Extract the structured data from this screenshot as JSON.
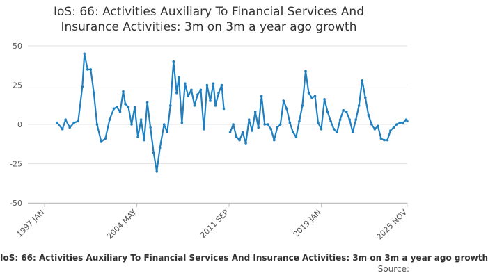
{
  "chart_data": {
    "type": "line",
    "title_line1": "IoS: 66: Activities Auxiliary To Financial Services And",
    "title_line2": "Insurance Activities: 3m on 3m a year ago growth",
    "x_tick_labels": [
      "1997 JAN",
      "2004 MAY",
      "2011 SEP",
      "2019 JAN",
      "2025 NOV"
    ],
    "y_ticks": [
      50,
      25,
      0,
      -25,
      -50
    ],
    "ylim": [
      -50,
      50
    ],
    "grid": true,
    "legend_position": "bottom",
    "color": "#1f7fbf",
    "series": [
      {
        "name": "IoS: 66: Activities Auxiliary To Financial Services And Insurance Activities: 3m on 3m a year ago growth",
        "segments": [
          {
            "x": [
              "1998-01",
              "1998-06",
              "1998-09",
              "1999-01",
              "1999-05",
              "1999-09",
              "2000-01",
              "2000-03",
              "2000-06",
              "2000-09",
              "2000-12",
              "2001-03",
              "2001-07",
              "2001-11",
              "2002-03",
              "2002-07",
              "2002-10",
              "2003-01",
              "2003-04",
              "2003-06",
              "2003-09",
              "2003-12",
              "2004-03",
              "2004-06",
              "2004-09",
              "2004-12",
              "2005-03",
              "2005-06",
              "2005-09",
              "2005-12",
              "2006-03",
              "2006-07",
              "2006-10",
              "2007-01",
              "2007-04",
              "2007-07",
              "2007-09",
              "2007-12",
              "2008-03",
              "2008-06",
              "2008-09",
              "2008-12",
              "2009-03",
              "2009-06",
              "2009-09",
              "2009-12",
              "2010-03",
              "2010-06",
              "2010-08",
              "2010-11",
              "2011-02",
              "2011-04"
            ],
            "y": [
              1,
              -3,
              3,
              -2,
              1,
              2,
              24,
              45,
              35,
              35,
              20,
              0,
              -11,
              -9,
              3,
              10,
              11,
              8,
              21,
              13,
              11,
              0,
              11,
              -8,
              3,
              -10,
              14,
              -2,
              -18,
              -30,
              -15,
              0,
              -5,
              12,
              40,
              20,
              30,
              1,
              26,
              18,
              22,
              12,
              19,
              22,
              -3,
              25,
              15,
              26,
              12,
              20,
              25,
              10
            ]
          },
          {
            "x": [
              "2011-10",
              "2012-01",
              "2012-04",
              "2012-07",
              "2012-10",
              "2013-01",
              "2013-04",
              "2013-07",
              "2013-10",
              "2014-01",
              "2014-04",
              "2014-07",
              "2014-10",
              "2015-01",
              "2015-04",
              "2015-07",
              "2015-10",
              "2016-01",
              "2016-04",
              "2016-07",
              "2016-10",
              "2017-01",
              "2017-04",
              "2017-07",
              "2017-10",
              "2018-01",
              "2018-04",
              "2018-07",
              "2018-10",
              "2019-01",
              "2019-04",
              "2019-07",
              "2019-10",
              "2020-01",
              "2020-04",
              "2020-07",
              "2020-10",
              "2021-01",
              "2021-04",
              "2021-07",
              "2021-10",
              "2022-01",
              "2022-04",
              "2022-07",
              "2022-10",
              "2023-01",
              "2023-04",
              "2023-07",
              "2023-10",
              "2024-01",
              "2024-04",
              "2024-07",
              "2024-10",
              "2025-01",
              "2025-04",
              "2025-07",
              "2025-10",
              "2025-11"
            ],
            "y": [
              -5,
              0,
              -8,
              -10,
              -5,
              -12,
              3,
              -4,
              8,
              -2,
              18,
              0,
              0,
              -3,
              -10,
              -2,
              0,
              15,
              10,
              1,
              -5,
              -8,
              2,
              12,
              34,
              20,
              17,
              18,
              1,
              -3,
              16,
              8,
              2,
              -3,
              -5,
              3,
              9,
              8,
              3,
              -5,
              3,
              12,
              28,
              17,
              6,
              0,
              -3,
              -1,
              -9,
              -10,
              -10,
              -4,
              -2,
              0,
              1,
              1,
              3,
              2
            ]
          }
        ]
      }
    ],
    "legend_text": "IoS: 66: Activities Auxiliary To Financial Services And Insurance Activities: 3m on 3m a year ago growth",
    "source_label": "Source:"
  }
}
